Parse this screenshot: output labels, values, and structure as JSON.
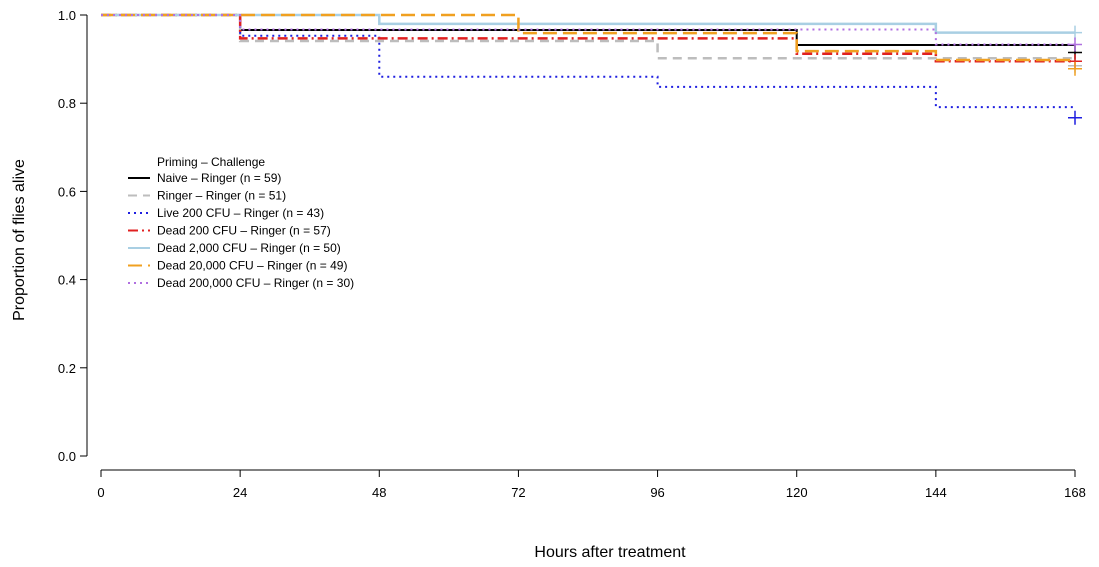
{
  "chart_data": {
    "type": "line",
    "subtype": "kaplan-meier-step",
    "title": "",
    "xlabel": "Hours after treatment",
    "ylabel": "Proportion of flies alive",
    "xlim": [
      0,
      168
    ],
    "ylim": [
      0,
      1
    ],
    "x_ticks": [
      "0",
      "24",
      "48",
      "72",
      "96",
      "120",
      "144",
      "168"
    ],
    "y_ticks": [
      "0.0",
      "0.2",
      "0.4",
      "0.6",
      "0.8",
      "1.0"
    ],
    "legend_position": "left",
    "legend_header": "Priming  –  Challenge",
    "grid": false,
    "series": [
      {
        "name": "Naive  –  Ringer (n = 59)",
        "color": "#000000",
        "dash": "solid",
        "width": 2,
        "steps": [
          [
            0,
            1.0
          ],
          [
            24,
            0.966
          ],
          [
            120,
            0.932
          ]
        ],
        "censor": [
          168,
          0.915
        ]
      },
      {
        "name": "Ringer  –  Ringer (n = 51)",
        "color": "#bdbdbd",
        "dash": "dashed",
        "width": 2.5,
        "steps": [
          [
            0,
            1.0
          ],
          [
            24,
            0.941
          ],
          [
            96,
            0.902
          ]
        ],
        "censor": [
          168,
          0.885
        ]
      },
      {
        "name": "Live 200 CFU  –  Ringer (n = 43)",
        "color": "#1f1fe0",
        "dash": "dotted",
        "width": 2,
        "steps": [
          [
            0,
            1.0
          ],
          [
            24,
            0.953
          ],
          [
            48,
            0.86
          ],
          [
            96,
            0.837
          ],
          [
            144,
            0.791
          ]
        ],
        "censor": [
          168,
          0.767
        ]
      },
      {
        "name": "Dead 200 CFU  –  Ringer (n = 57)",
        "color": "#e02020",
        "dash": "dotdash",
        "width": 2.5,
        "steps": [
          [
            0,
            1.0
          ],
          [
            24,
            0.947
          ],
          [
            120,
            0.912
          ],
          [
            144,
            0.895
          ]
        ],
        "censor": [
          168,
          0.895
        ]
      },
      {
        "name": "Dead 2,000 CFU  –  Ringer (n = 50)",
        "color": "#a9cfe3",
        "dash": "solid",
        "width": 2.5,
        "steps": [
          [
            0,
            1.0
          ],
          [
            48,
            0.98
          ],
          [
            144,
            0.96
          ]
        ],
        "censor": [
          168,
          0.96
        ]
      },
      {
        "name": "Dead 20,000 CFU  –  Ringer (n = 49)",
        "color": "#f0a020",
        "dash": "longdash",
        "width": 2.5,
        "steps": [
          [
            0,
            1.0
          ],
          [
            72,
            0.959
          ],
          [
            120,
            0.918
          ],
          [
            144,
            0.898
          ]
        ],
        "censor": [
          168,
          0.878
        ]
      },
      {
        "name": "Dead 200,000 CFU  –  Ringer (n = 30)",
        "color": "#b070e0",
        "dash": "dotted",
        "width": 2,
        "steps": [
          [
            0,
            1.0
          ],
          [
            24,
            0.967
          ],
          [
            48,
            0.967
          ],
          [
            144,
            0.933
          ]
        ],
        "censor": [
          168,
          0.933
        ]
      }
    ]
  }
}
